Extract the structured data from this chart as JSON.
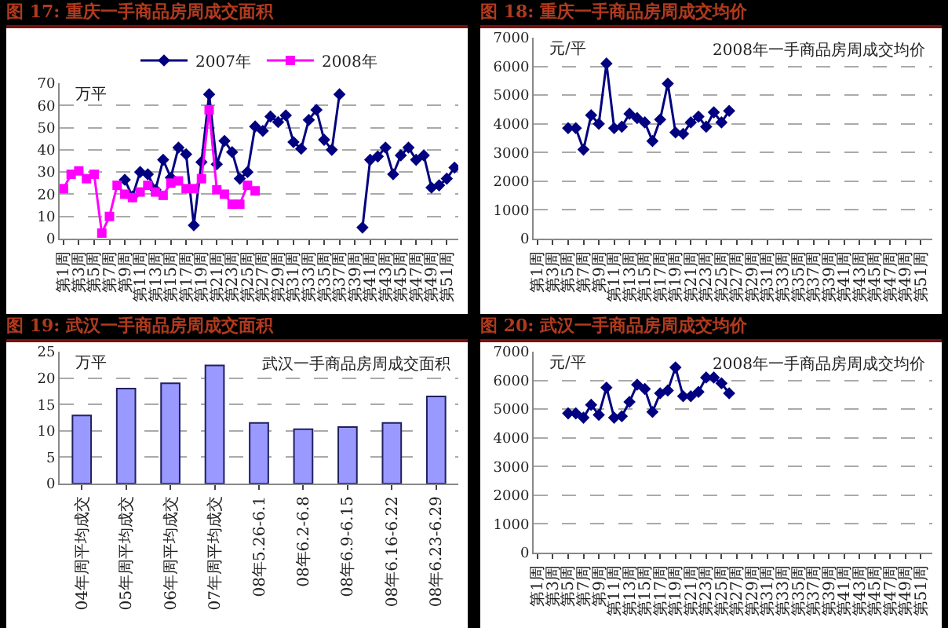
{
  "chart_data": [
    {
      "type": "line",
      "title": "图 17: 重庆一手商品房周成交面积",
      "ylabel": "万平",
      "categories": [
        "第1周",
        null,
        "第3周",
        null,
        "第5周",
        null,
        "第7周",
        null,
        "第9周",
        null,
        "第11周",
        null,
        "第13周",
        null,
        "第15周",
        null,
        "第17周",
        null,
        "第19周",
        null,
        "第21周",
        null,
        "第23周",
        null,
        "第25周",
        null,
        "第27周",
        null,
        "第29周",
        null,
        "第31周",
        null,
        "第33周",
        null,
        "第35周",
        null,
        "第37周",
        null,
        "第39周",
        null,
        "第41周",
        null,
        "第43周",
        null,
        "第45周",
        null,
        "第47周",
        null,
        "第49周",
        null,
        "第51周",
        null
      ],
      "ylim": [
        0,
        70
      ],
      "yticks": [
        0,
        10,
        20,
        30,
        40,
        50,
        60,
        70
      ],
      "grid": "y",
      "legend": "top",
      "line_style": "solid",
      "series": [
        {
          "name": "2007年",
          "color": "#000080",
          "marker": "diamond",
          "values": [
            null,
            null,
            null,
            null,
            null,
            null,
            null,
            null,
            26.5,
            19,
            30,
            29,
            22,
            35.5,
            27.5,
            41,
            38,
            6,
            34.5,
            65,
            33.5,
            44,
            39,
            27,
            30,
            50.5,
            48.5,
            55,
            52.5,
            55.5,
            43.5,
            40.5,
            53.5,
            58,
            44.5,
            40,
            65,
            null,
            null,
            5,
            35.5,
            37,
            41,
            29,
            37.5,
            41,
            35.5,
            37.5,
            23,
            24,
            27,
            32
          ]
        },
        {
          "name": "2008年",
          "color": "#ff00ff",
          "marker": "square",
          "values": [
            22.5,
            29,
            30.5,
            27,
            29,
            2.5,
            10,
            24,
            20,
            18.5,
            21,
            24,
            21,
            19.5,
            25,
            26,
            22.5,
            22.5,
            27,
            58,
            22,
            20,
            15.5,
            15.5,
            24,
            21.5,
            null,
            null,
            null,
            null,
            null,
            null,
            null,
            null,
            null,
            null,
            null,
            null,
            null,
            null,
            null,
            null,
            null,
            null,
            null,
            null,
            null,
            null,
            null,
            null,
            null,
            null
          ]
        }
      ]
    },
    {
      "type": "line",
      "title": "图 18: 重庆一手商品房周成交均价",
      "subtitle": "2008年一手商品房周成交均价",
      "ylabel": "元/平",
      "categories": [
        "第1周",
        null,
        "第3周",
        null,
        "第5周",
        null,
        "第7周",
        null,
        "第9周",
        null,
        "第11周",
        null,
        "第13周",
        null,
        "第15周",
        null,
        "第17周",
        null,
        "第19周",
        null,
        "第21周",
        null,
        "第23周",
        null,
        "第25周",
        null,
        "第27周",
        null,
        "第29周",
        null,
        "第31周",
        null,
        "第33周",
        null,
        "第35周",
        null,
        "第37周",
        null,
        "第39周",
        null,
        "第41周",
        null,
        "第43周",
        null,
        "第45周",
        null,
        "第47周",
        null,
        "第49周",
        null,
        "第51周",
        null
      ],
      "ylim": [
        0,
        7000
      ],
      "yticks": [
        0,
        1000,
        2000,
        3000,
        4000,
        5000,
        6000,
        7000
      ],
      "grid": "y",
      "marker": "diamond",
      "line_style": "solid",
      "series": [
        {
          "color": "#000080",
          "values": [
            null,
            null,
            null,
            null,
            3850,
            3850,
            3100,
            4300,
            4000,
            6100,
            3850,
            3900,
            4350,
            4200,
            4050,
            3400,
            4150,
            5400,
            3700,
            3650,
            4050,
            4250,
            3900,
            4400,
            4050,
            4450,
            null,
            null,
            null,
            null,
            null,
            null,
            null,
            null,
            null,
            null,
            null,
            null,
            null,
            null,
            null,
            null,
            null,
            null,
            null,
            null,
            null,
            null,
            null,
            null,
            null,
            null
          ]
        }
      ]
    },
    {
      "type": "bar",
      "title": "图 19: 武汉一手商品房周成交面积",
      "subtitle": "武汉一手商品房周成交面积",
      "ylabel": "万平",
      "categories": [
        "04年周平均成交",
        "05年周平均成交",
        "06年周平均成交",
        "07年周平均成交",
        "08年5.26-6.1",
        "08年6.2-6.8",
        "08年6.9-6.15",
        "08年6.16-6.22",
        "08年6.23-6.29"
      ],
      "values": [
        12.9,
        18,
        19,
        22.4,
        11.5,
        10.3,
        10.7,
        11.5,
        16.5
      ],
      "color": "#9999ff",
      "ylim": [
        0,
        25
      ],
      "yticks": [
        0,
        5,
        10,
        15,
        20,
        25
      ],
      "grid": "y"
    },
    {
      "type": "line",
      "title": "图 20: 武汉一手商品房周成交均价",
      "subtitle": "2008年一手商品房周成交均价",
      "ylabel": "元/平",
      "categories": [
        "第1周",
        null,
        "第3周",
        null,
        "第5周",
        null,
        "第7周",
        null,
        "第9周",
        null,
        "第11周",
        null,
        "第13周",
        null,
        "第15周",
        null,
        "第17周",
        null,
        "第19周",
        null,
        "第21周",
        null,
        "第23周",
        null,
        "第25周",
        null,
        "第27周",
        null,
        "第29周",
        null,
        "第31周",
        null,
        "第33周",
        null,
        "第35周",
        null,
        "第37周",
        null,
        "第39周",
        null,
        "第41周",
        null,
        "第43周",
        null,
        "第45周",
        null,
        "第47周",
        null,
        "第49周",
        null,
        "第51周",
        null
      ],
      "ylim": [
        0,
        7000
      ],
      "yticks": [
        0,
        1000,
        2000,
        3000,
        4000,
        5000,
        6000,
        7000
      ],
      "grid": "y",
      "marker": "diamond",
      "line_style": "solid",
      "series": [
        {
          "color": "#000080",
          "values": [
            null,
            null,
            null,
            null,
            4850,
            4850,
            4700,
            5150,
            4800,
            5750,
            4700,
            4750,
            5250,
            5850,
            5700,
            4900,
            5550,
            5650,
            6450,
            5450,
            5450,
            5600,
            6100,
            6100,
            5900,
            5550,
            null,
            null,
            null,
            null,
            null,
            null,
            null,
            null,
            null,
            null,
            null,
            null,
            null,
            null,
            null,
            null,
            null,
            null,
            null,
            null,
            null,
            null,
            null,
            null,
            null,
            null
          ]
        }
      ]
    }
  ]
}
